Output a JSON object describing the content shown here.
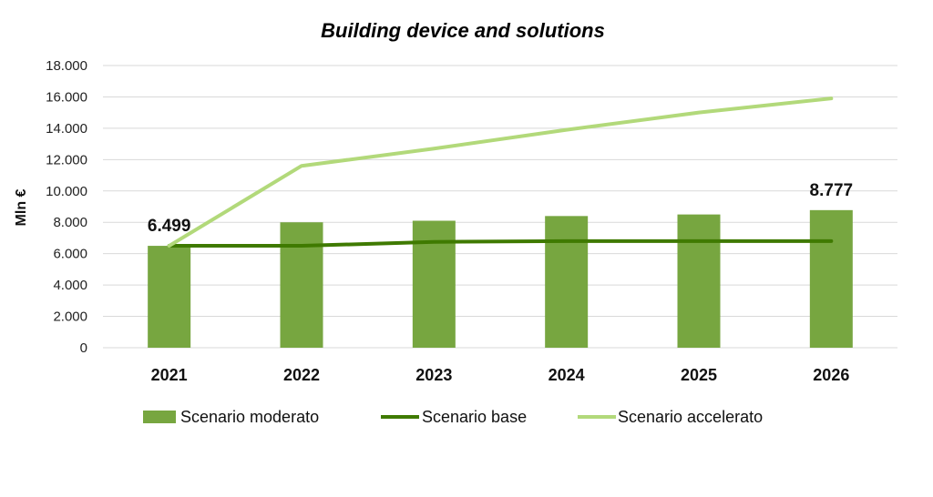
{
  "chart_data": {
    "type": "bar",
    "title": "Building device and solutions",
    "ylabel": "Mln €",
    "xlabel": "",
    "categories": [
      "2021",
      "2022",
      "2023",
      "2024",
      "2025",
      "2026"
    ],
    "ylim": [
      0,
      18000
    ],
    "yticks": [
      0,
      2000,
      4000,
      6000,
      8000,
      10000,
      12000,
      14000,
      16000,
      18000
    ],
    "ytick_labels": [
      "0",
      "2.000",
      "4.000",
      "6.000",
      "8.000",
      "10.000",
      "12.000",
      "14.000",
      "16.000",
      "18.000"
    ],
    "grid": true,
    "legend_position": "bottom",
    "series": [
      {
        "name": "Scenario moderato",
        "kind": "bar",
        "color": "#77a640",
        "values": [
          6499,
          8000,
          8100,
          8400,
          8500,
          8777
        ]
      },
      {
        "name": "Scenario base",
        "kind": "line",
        "color": "#3f7a00",
        "values": [
          6500,
          6500,
          6750,
          6800,
          6800,
          6800
        ]
      },
      {
        "name": "Scenario accelerato",
        "kind": "line",
        "color": "#b2d97a",
        "values": [
          6499,
          11600,
          12700,
          13900,
          15000,
          15900
        ]
      }
    ],
    "data_labels": [
      {
        "category": "2021",
        "text": "6.499"
      },
      {
        "category": "2026",
        "text": "8.777"
      }
    ]
  }
}
